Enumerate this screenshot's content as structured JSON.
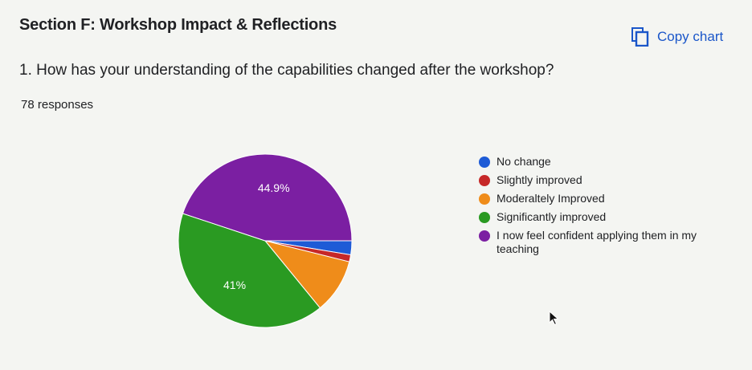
{
  "section": {
    "title": "Section F: Workshop Impact & Reflections"
  },
  "toolbar": {
    "copy_chart_label": "Copy chart",
    "copy_icon": "copy-icon"
  },
  "question": {
    "text": "1. How has your understanding of the capabilities changed after the workshop?"
  },
  "responses": {
    "count_text": "78 responses"
  },
  "chart_data": {
    "type": "pie",
    "categories": [
      "No change",
      "Slightly improved",
      "Moderaltely Improved",
      "Significantly improved",
      "I now feel confident applying them in my teaching"
    ],
    "values": [
      2.6,
      1.3,
      10.2,
      41,
      44.9
    ],
    "colors": [
      "#1e5bd6",
      "#c62828",
      "#ef8c1a",
      "#2a9a22",
      "#7b1fa2"
    ],
    "data_labels": [
      "",
      "",
      "",
      "41%",
      "44.9%"
    ],
    "legend_position": "right"
  }
}
